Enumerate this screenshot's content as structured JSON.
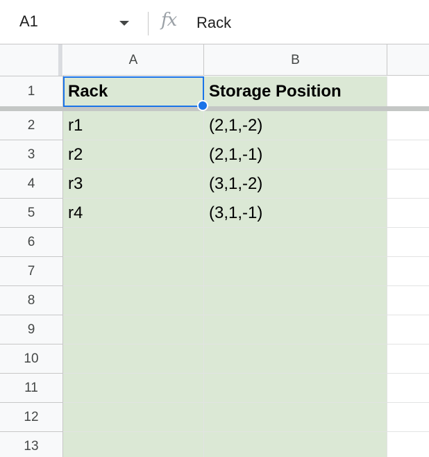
{
  "name_box": {
    "value": "A1"
  },
  "formula_bar": {
    "fx_label": "fx",
    "value": "Rack"
  },
  "columns": [
    {
      "label": "A"
    },
    {
      "label": "B"
    }
  ],
  "rows": [
    {
      "num": "1",
      "a": "Rack",
      "b": "Storage Position"
    },
    {
      "num": "2",
      "a": "r1",
      "b": "(2,1,-2)"
    },
    {
      "num": "3",
      "a": "r2",
      "b": "(2,1,-1)"
    },
    {
      "num": "4",
      "a": "r3",
      "b": "(3,1,-2)"
    },
    {
      "num": "5",
      "a": "r4",
      "b": "(3,1,-1)"
    },
    {
      "num": "6",
      "a": "",
      "b": ""
    },
    {
      "num": "7",
      "a": "",
      "b": ""
    },
    {
      "num": "8",
      "a": "",
      "b": ""
    },
    {
      "num": "9",
      "a": "",
      "b": ""
    },
    {
      "num": "10",
      "a": "",
      "b": ""
    },
    {
      "num": "11",
      "a": "",
      "b": ""
    },
    {
      "num": "12",
      "a": "",
      "b": ""
    },
    {
      "num": "13",
      "a": "",
      "b": ""
    }
  ],
  "colors": {
    "cell_fill": "#dbe8d5",
    "selection": "#1a73e8",
    "header_bg": "#f8f9fa"
  }
}
